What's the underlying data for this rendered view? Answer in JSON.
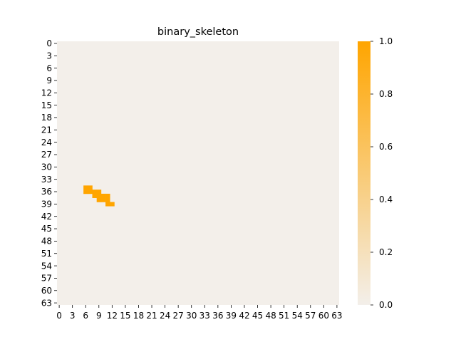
{
  "chart_data": {
    "type": "heatmap",
    "title": "binary_skeleton",
    "xlabel": "",
    "ylabel": "",
    "rows": 64,
    "cols": 64,
    "x_tick_labels": [
      "0",
      "3",
      "6",
      "9",
      "12",
      "15",
      "18",
      "21",
      "24",
      "27",
      "30",
      "33",
      "36",
      "39",
      "42",
      "45",
      "48",
      "51",
      "54",
      "57",
      "60",
      "63"
    ],
    "y_tick_labels": [
      "0",
      "3",
      "6",
      "9",
      "12",
      "15",
      "18",
      "21",
      "24",
      "27",
      "30",
      "33",
      "36",
      "39",
      "42",
      "45",
      "48",
      "51",
      "54",
      "57",
      "60",
      "63"
    ],
    "value_range": [
      0,
      1
    ],
    "background_value": 0,
    "active_cells": [
      {
        "row": 35,
        "col": 6,
        "value": 1
      },
      {
        "row": 35,
        "col": 7,
        "value": 1
      },
      {
        "row": 36,
        "col": 6,
        "value": 1
      },
      {
        "row": 36,
        "col": 7,
        "value": 1
      },
      {
        "row": 36,
        "col": 8,
        "value": 1
      },
      {
        "row": 36,
        "col": 9,
        "value": 1
      },
      {
        "row": 37,
        "col": 8,
        "value": 1
      },
      {
        "row": 37,
        "col": 9,
        "value": 1
      },
      {
        "row": 37,
        "col": 10,
        "value": 1
      },
      {
        "row": 37,
        "col": 11,
        "value": 1
      },
      {
        "row": 38,
        "col": 9,
        "value": 1
      },
      {
        "row": 38,
        "col": 10,
        "value": 1
      },
      {
        "row": 38,
        "col": 11,
        "value": 1
      },
      {
        "row": 39,
        "col": 11,
        "value": 1
      },
      {
        "row": 39,
        "col": 12,
        "value": 1
      }
    ],
    "colorbar": {
      "low_color": "#f3efea",
      "high_color": "#ffa500",
      "tick_labels": [
        "0.0",
        "0.2",
        "0.4",
        "0.6",
        "0.8",
        "1.0"
      ],
      "tick_values": [
        0,
        0.2,
        0.4,
        0.6,
        0.8,
        1.0
      ]
    },
    "grid": false,
    "legend": "none"
  }
}
